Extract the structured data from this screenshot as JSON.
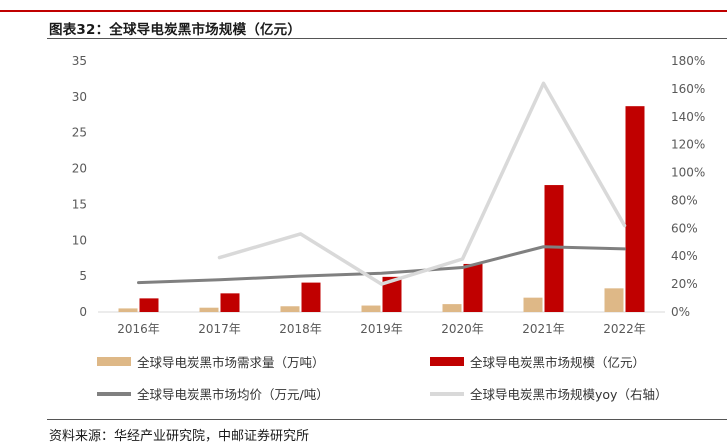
{
  "header": {
    "title": "图表32：全球导电炭黑市场规模（亿元）"
  },
  "footer": {
    "source": "资料来源：华经产业研究院，中邮证券研究所"
  },
  "colors": {
    "accent_rule": "#c00000",
    "demand": "#deb887",
    "market": "#c00000",
    "price": "#808080",
    "yoy": "#d9d9d9",
    "axis": "#d9d9d9"
  },
  "chart_data": {
    "type": "bar",
    "title": "全球导电炭黑市场规模（亿元）",
    "categories": [
      "2016年",
      "2017年",
      "2018年",
      "2019年",
      "2020年",
      "2021年",
      "2022年"
    ],
    "left_axis": {
      "ylim": [
        0,
        35
      ],
      "ticks": [
        "0",
        "5",
        "10",
        "15",
        "20",
        "25",
        "30",
        "35"
      ]
    },
    "right_axis": {
      "ylim": [
        0,
        180
      ],
      "ticks": [
        "0%",
        "20%",
        "40%",
        "60%",
        "80%",
        "100%",
        "120%",
        "140%",
        "160%",
        "180%"
      ]
    },
    "legend_position": "bottom",
    "grid": false,
    "series": [
      {
        "name": "全球导电炭黑市场需求量（万吨）",
        "type": "bar",
        "axis": "left",
        "color": "#deb887",
        "values": [
          0.5,
          0.6,
          0.8,
          0.9,
          1.1,
          2.0,
          3.3
        ]
      },
      {
        "name": "全球导电炭黑市场规模（亿元）",
        "type": "bar",
        "axis": "left",
        "color": "#c00000",
        "values": [
          1.9,
          2.6,
          4.1,
          4.9,
          6.7,
          17.7,
          28.7
        ]
      },
      {
        "name": "全球导电炭黑市场均价（万元/吨）",
        "type": "line",
        "axis": "left",
        "color": "#808080",
        "values": [
          4.1,
          4.5,
          5.0,
          5.4,
          6.2,
          9.1,
          8.8
        ]
      },
      {
        "name": "全球导电炭黑市场规模yoy（右轴）",
        "type": "line",
        "axis": "right",
        "color": "#d9d9d9",
        "values": [
          null,
          39,
          56,
          20,
          38,
          164,
          62
        ]
      }
    ]
  }
}
